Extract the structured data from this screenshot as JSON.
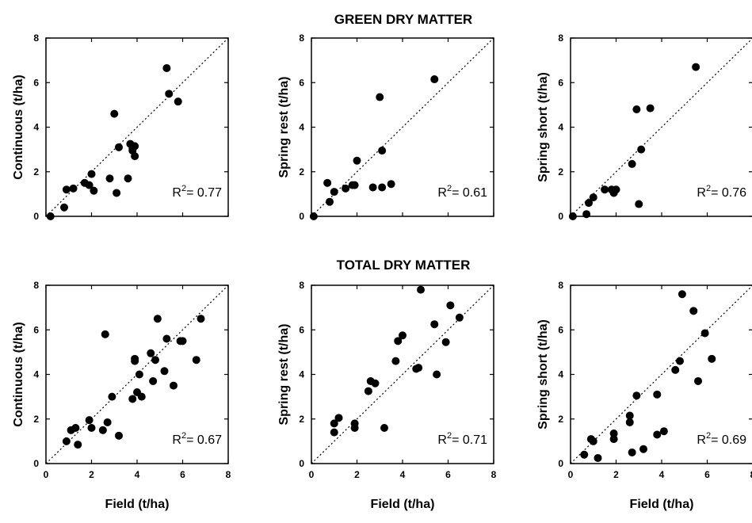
{
  "sections": [
    {
      "title": "GREEN DRY MATTER"
    },
    {
      "title": "TOTAL DRY MATTER"
    }
  ],
  "chart_data": [
    {
      "type": "scatter",
      "section": 0,
      "xlabel": "",
      "ylabel": "Continuous (t/ha)",
      "xlim": [
        0,
        8
      ],
      "ylim": [
        0,
        8
      ],
      "ticks": [
        0,
        2,
        4,
        6,
        8
      ],
      "r2_prefix": "R",
      "r2_sup": "2",
      "r2_value": "= 0.77",
      "x": [
        0.2,
        0.8,
        0.9,
        1.2,
        1.7,
        1.9,
        2.0,
        2.1,
        2.8,
        3.0,
        3.1,
        3.2,
        3.6,
        3.7,
        3.8,
        3.8,
        3.9,
        3.9,
        5.3,
        5.4,
        5.8
      ],
      "y": [
        0.0,
        0.4,
        1.2,
        1.25,
        1.5,
        1.4,
        1.9,
        1.15,
        1.7,
        4.6,
        1.05,
        3.1,
        1.7,
        3.25,
        2.95,
        3.05,
        2.7,
        3.15,
        6.65,
        5.5,
        5.15
      ]
    },
    {
      "type": "scatter",
      "section": 0,
      "xlabel": "",
      "ylabel": "Spring rest (t/ha)",
      "xlim": [
        0,
        8
      ],
      "ylim": [
        0,
        8
      ],
      "ticks": [
        0,
        2,
        4,
        6,
        8
      ],
      "r2_prefix": "R",
      "r2_sup": "2",
      "r2_value": "= 0.61",
      "x": [
        0.1,
        0.7,
        0.8,
        1.0,
        1.5,
        1.8,
        1.9,
        2.0,
        2.7,
        3.0,
        3.1,
        3.1,
        3.5,
        5.4
      ],
      "y": [
        0.0,
        1.5,
        0.65,
        1.1,
        1.25,
        1.4,
        1.4,
        2.5,
        1.3,
        5.35,
        2.95,
        1.3,
        1.45,
        6.15
      ]
    },
    {
      "type": "scatter",
      "section": 0,
      "xlabel": "",
      "ylabel": "Spring short (t/ha)",
      "xlim": [
        0,
        8
      ],
      "ylim": [
        0,
        8
      ],
      "ticks": [
        0,
        2,
        4,
        6,
        8
      ],
      "r2_prefix": "R",
      "r2_sup": "2",
      "r2_value": "= 0.76",
      "x": [
        0.1,
        0.7,
        0.8,
        1.0,
        1.5,
        1.8,
        1.9,
        2.0,
        2.7,
        2.9,
        3.0,
        3.1,
        3.5,
        5.5
      ],
      "y": [
        0.0,
        0.1,
        0.6,
        0.85,
        1.2,
        1.2,
        1.05,
        1.2,
        2.35,
        4.8,
        0.55,
        3.0,
        4.85,
        6.7
      ]
    },
    {
      "type": "scatter",
      "section": 1,
      "xlabel": "Field (t/ha)",
      "ylabel": "Continuous (t/ha)",
      "xlim": [
        0,
        8
      ],
      "ylim": [
        0,
        8
      ],
      "ticks": [
        0,
        2,
        4,
        6,
        8
      ],
      "r2_prefix": "R",
      "r2_sup": "2",
      "r2_value": "= 0.67",
      "x": [
        0.9,
        1.1,
        1.3,
        1.4,
        1.9,
        2.0,
        2.5,
        2.6,
        2.7,
        2.9,
        3.2,
        3.8,
        3.9,
        3.9,
        4.0,
        4.1,
        4.2,
        4.6,
        4.7,
        4.8,
        4.9,
        5.2,
        5.3,
        5.6,
        5.9,
        6.0,
        6.6,
        6.8
      ],
      "y": [
        1.0,
        1.5,
        1.6,
        0.85,
        1.95,
        1.6,
        1.5,
        5.8,
        1.85,
        3.0,
        1.25,
        2.9,
        4.7,
        4.6,
        3.2,
        4.0,
        3.0,
        4.95,
        3.7,
        4.65,
        6.5,
        4.15,
        5.6,
        3.5,
        5.5,
        5.5,
        4.65,
        6.5
      ]
    },
    {
      "type": "scatter",
      "section": 1,
      "xlabel": "Field (t/ha)",
      "ylabel": "Spring rest (t/ha)",
      "xlim": [
        0,
        8
      ],
      "ylim": [
        0,
        8
      ],
      "ticks": [
        0,
        2,
        4,
        6,
        8
      ],
      "r2_prefix": "R",
      "r2_sup": "2",
      "r2_value": "= 0.71",
      "x": [
        1.0,
        1.0,
        1.2,
        1.9,
        1.9,
        2.5,
        2.6,
        2.8,
        3.2,
        3.7,
        3.8,
        4.0,
        4.6,
        4.7,
        4.8,
        5.4,
        5.5,
        5.9,
        6.1,
        6.5
      ],
      "y": [
        1.4,
        1.8,
        2.05,
        1.8,
        1.6,
        3.25,
        3.7,
        3.6,
        1.6,
        4.6,
        5.5,
        5.75,
        4.25,
        4.3,
        7.8,
        6.25,
        4.0,
        5.45,
        7.1,
        6.55
      ]
    },
    {
      "type": "scatter",
      "section": 1,
      "xlabel": "Field (t/ha)",
      "ylabel": "Spring short (t/ha)",
      "xlim": [
        0,
        8
      ],
      "ylim": [
        0,
        8
      ],
      "ticks": [
        0,
        2,
        4,
        6,
        8
      ],
      "r2_prefix": "R",
      "r2_sup": "2",
      "r2_value": "= 0.69",
      "x": [
        0.6,
        0.9,
        1.0,
        1.2,
        1.9,
        1.9,
        2.6,
        2.6,
        2.7,
        2.9,
        3.2,
        3.8,
        3.8,
        4.1,
        4.6,
        4.8,
        4.9,
        5.4,
        5.6,
        5.9,
        6.2
      ],
      "y": [
        0.4,
        1.1,
        1.0,
        0.25,
        1.35,
        1.1,
        1.85,
        2.15,
        0.5,
        3.05,
        0.65,
        1.3,
        3.1,
        1.45,
        4.2,
        4.6,
        7.6,
        6.85,
        3.7,
        5.85,
        4.7
      ]
    }
  ]
}
